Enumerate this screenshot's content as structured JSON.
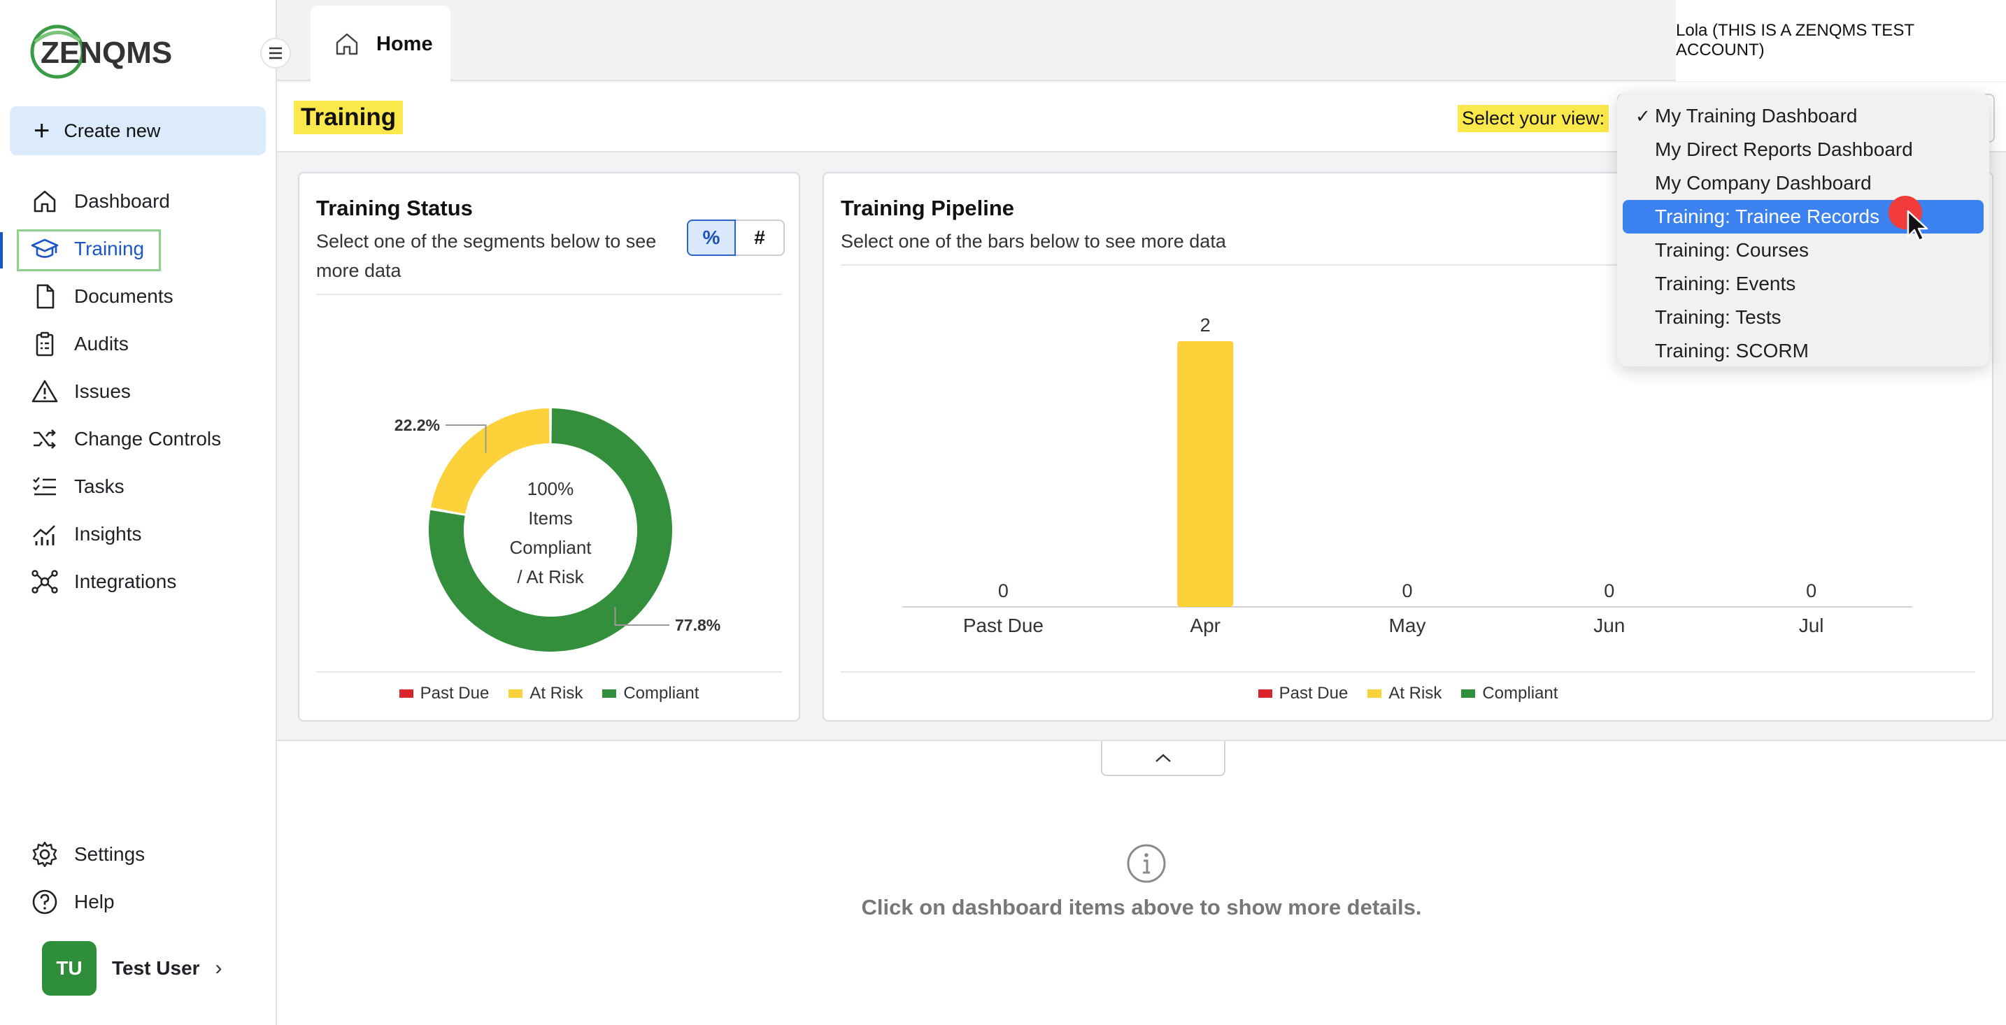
{
  "app": {
    "logo_text": "ZENQMS"
  },
  "sidebar": {
    "create_new": "Create new",
    "items": [
      {
        "label": "Dashboard",
        "icon": "home-icon"
      },
      {
        "label": "Training",
        "icon": "graduation-cap-icon",
        "active": true
      },
      {
        "label": "Documents",
        "icon": "document-icon"
      },
      {
        "label": "Audits",
        "icon": "clipboard-icon"
      },
      {
        "label": "Issues",
        "icon": "warning-icon"
      },
      {
        "label": "Change Controls",
        "icon": "shuffle-icon"
      },
      {
        "label": "Tasks",
        "icon": "tasks-icon"
      },
      {
        "label": "Insights",
        "icon": "insights-icon"
      },
      {
        "label": "Integrations",
        "icon": "integrations-icon"
      }
    ],
    "bottom_items": [
      {
        "label": "Settings",
        "icon": "gear-icon"
      },
      {
        "label": "Help",
        "icon": "help-icon"
      }
    ],
    "user": {
      "initials": "TU",
      "name": "Test User"
    }
  },
  "topbar": {
    "tab_home": "Home",
    "account": "Lola (THIS IS A ZENQMS TEST ACCOUNT)"
  },
  "header": {
    "title": "Training",
    "view_label": "Select your view:"
  },
  "view_dropdown": {
    "options": [
      "My Training Dashboard",
      "My Direct Reports Dashboard",
      "My Company Dashboard",
      "Training: Trainee Records",
      "Training: Courses",
      "Training: Events",
      "Training: Tests",
      "Training: SCORM"
    ],
    "checked": "My Training Dashboard",
    "highlighted": "Training: Trainee Records",
    "check_mark": "✓"
  },
  "status_card": {
    "title": "Training Status",
    "subtitle_line1": "Select one of the segments below to see",
    "subtitle_line2": "more data",
    "toggle_percent": "%",
    "toggle_count": "#",
    "center_lines": [
      "100%",
      "Items",
      "Compliant",
      "/ At Risk"
    ],
    "legend": [
      "Past Due",
      "At Risk",
      "Compliant"
    ]
  },
  "pipeline_card": {
    "title": "Training Pipeline",
    "subtitle": "Select one of the bars below to see more data",
    "legend": [
      "Past Due",
      "At Risk",
      "Compliant"
    ]
  },
  "colors": {
    "past_due": "#d9262c",
    "at_risk": "#fdd13a",
    "compliant": "#338f3b",
    "highlight": "#fbe84a",
    "accent": "#1a56c4"
  },
  "chart_data": [
    {
      "type": "pie",
      "donut": true,
      "title": "Training Status",
      "slices": [
        {
          "label": "At Risk",
          "value": 22.2,
          "display": "22.2%"
        },
        {
          "label": "Compliant",
          "value": 77.8,
          "display": "77.8%"
        }
      ],
      "legend": [
        "Past Due",
        "At Risk",
        "Compliant"
      ],
      "legend_position": "bottom"
    },
    {
      "type": "bar",
      "title": "Training Pipeline",
      "categories": [
        "Past Due",
        "Apr",
        "May",
        "Jun",
        "Jul"
      ],
      "values": [
        0,
        2,
        0,
        0,
        0
      ],
      "legend": [
        "Past Due",
        "At Risk",
        "Compliant"
      ],
      "legend_position": "bottom",
      "grid": false
    }
  ],
  "details": {
    "message": "Click on dashboard items above to show more details."
  }
}
